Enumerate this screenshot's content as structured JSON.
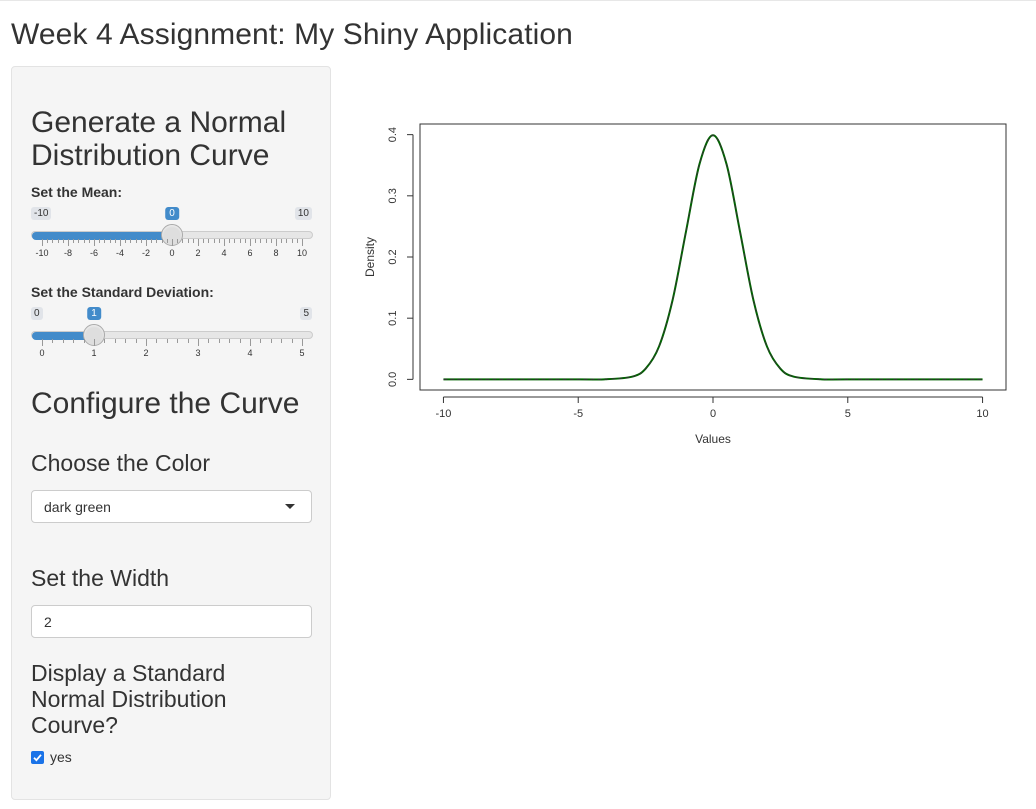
{
  "page": {
    "title": "Week 4 Assignment: My Shiny Application"
  },
  "sidebar": {
    "heading_generate": [
      "Generate a Normal",
      "Distribution Curve"
    ],
    "mean_slider": {
      "label": "Set the Mean:",
      "min": -10,
      "max": 10,
      "value": 0,
      "min_label": "-10",
      "max_label": "10",
      "value_label": "0",
      "tick_labels": [
        "-10",
        "-8",
        "-6",
        "-4",
        "-2",
        "0",
        "2",
        "4",
        "6",
        "8",
        "10"
      ]
    },
    "sd_slider": {
      "label": "Set the Standard Deviation:",
      "min": 0,
      "max": 5,
      "value": 1,
      "min_label": "0",
      "max_label": "5",
      "value_label": "1",
      "tick_labels": [
        "0",
        "1",
        "2",
        "3",
        "4",
        "5"
      ]
    },
    "heading_configure": "Configure the Curve",
    "color_section": {
      "label": "Choose the Color",
      "selected": "dark green"
    },
    "width_section": {
      "label": "Set the Width",
      "value": "2"
    },
    "display_section": {
      "label": [
        "Display a Standard",
        "Normal Distribution",
        "Courve?"
      ],
      "checkbox_label": "yes",
      "checked": true
    }
  },
  "colors": {
    "accent": "#428bca",
    "curve": "#006400",
    "reference": "#333333"
  },
  "chart_data": {
    "type": "line",
    "title": "",
    "xlabel": "Values",
    "ylabel": "Density",
    "xlim": [
      -10,
      10
    ],
    "ylim": [
      0,
      0.4
    ],
    "x_ticks": [
      "-10",
      "-5",
      "0",
      "5",
      "10"
    ],
    "y_ticks": [
      "0.0",
      "0.1",
      "0.2",
      "0.3",
      "0.4"
    ],
    "series": [
      {
        "x": [
          -10,
          -5,
          -4,
          -3,
          -2.5,
          -2,
          -1.5,
          -1,
          -0.5,
          0,
          0.5,
          1,
          1.5,
          2,
          2.5,
          3,
          4,
          5,
          10
        ],
        "y": [
          0,
          0,
          0.0001,
          0.0044,
          0.0175,
          0.054,
          0.1295,
          0.242,
          0.3521,
          0.3989,
          0.3521,
          0.242,
          0.1295,
          0.054,
          0.0175,
          0.0044,
          0.0001,
          0,
          0
        ]
      },
      {
        "x": [
          -10,
          -5,
          -4,
          -3,
          -2.5,
          -2,
          -1.5,
          -1,
          -0.5,
          0,
          0.5,
          1,
          1.5,
          2,
          2.5,
          3,
          4,
          5,
          10
        ],
        "y": [
          0,
          0,
          0.0001,
          0.0044,
          0.0175,
          0.054,
          0.1295,
          0.242,
          0.3521,
          0.3989,
          0.3521,
          0.242,
          0.1295,
          0.054,
          0.0175,
          0.0044,
          0.0001,
          0,
          0
        ]
      }
    ],
    "grid": false,
    "legend": "none"
  }
}
